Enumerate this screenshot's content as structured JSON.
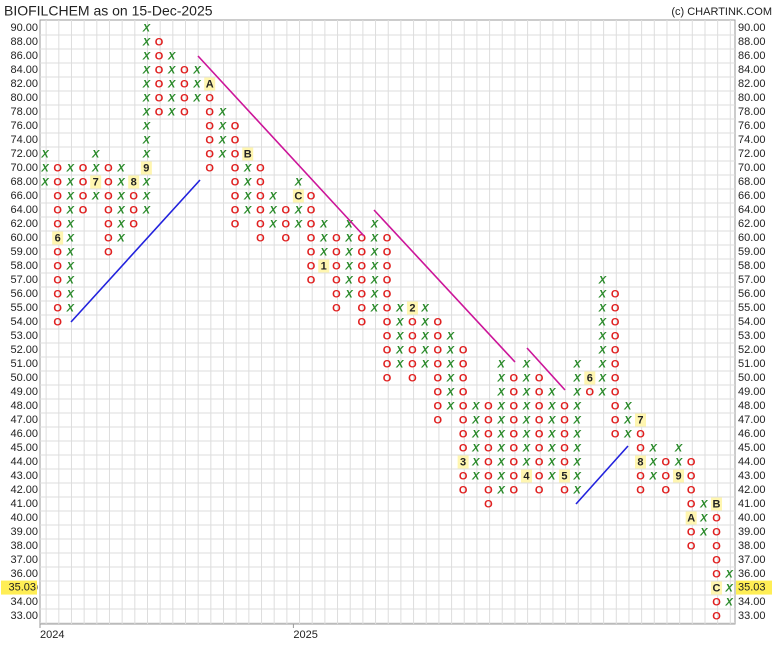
{
  "chart_data": {
    "type": "point-and-figure",
    "title": "BIOFILCHEM as on 15-Dec-2025",
    "credit": "(c) CHARTINK.COM",
    "x_color": "#2a8a2a",
    "o_color": "#e02020",
    "grid": true,
    "yticks": [
      {
        "value": 90,
        "label": "90.00"
      },
      {
        "value": 88,
        "label": "88.00"
      },
      {
        "value": 86,
        "label": "86.00"
      },
      {
        "value": 84,
        "label": "84.00"
      },
      {
        "value": 82,
        "label": "82.00"
      },
      {
        "value": 80,
        "label": "80.00"
      },
      {
        "value": 78,
        "label": "78.00"
      },
      {
        "value": 76,
        "label": "76.00"
      },
      {
        "value": 74,
        "label": "74.00"
      },
      {
        "value": 72,
        "label": "72.00"
      },
      {
        "value": 70,
        "label": "70.00"
      },
      {
        "value": 68,
        "label": "68.00"
      },
      {
        "value": 66,
        "label": "66.00"
      },
      {
        "value": 64,
        "label": "64.00"
      },
      {
        "value": 62,
        "label": "62.00"
      },
      {
        "value": 60,
        "label": "60.00"
      },
      {
        "value": 59,
        "label": "59.00"
      },
      {
        "value": 58,
        "label": "58.00"
      },
      {
        "value": 57,
        "label": "57.00"
      },
      {
        "value": 56,
        "label": "56.00"
      },
      {
        "value": 55,
        "label": "55.00"
      },
      {
        "value": 54,
        "label": "54.00"
      },
      {
        "value": 53,
        "label": "53.00"
      },
      {
        "value": 52,
        "label": "52.00"
      },
      {
        "value": 51,
        "label": "51.00"
      },
      {
        "value": 50,
        "label": "50.00"
      },
      {
        "value": 49,
        "label": "49.00"
      },
      {
        "value": 48,
        "label": "48.00"
      },
      {
        "value": 47,
        "label": "47.00"
      },
      {
        "value": 46,
        "label": "46.00"
      },
      {
        "value": 45,
        "label": "45.00"
      },
      {
        "value": 44,
        "label": "44.00"
      },
      {
        "value": 43,
        "label": "43.00"
      },
      {
        "value": 42,
        "label": "42.00"
      },
      {
        "value": 41,
        "label": "41.00"
      },
      {
        "value": 40,
        "label": "40.00"
      },
      {
        "value": 39,
        "label": "39.00"
      },
      {
        "value": 38,
        "label": "38.00"
      },
      {
        "value": 37,
        "label": "37.00"
      },
      {
        "value": 36,
        "label": "36.00"
      },
      {
        "value": 35,
        "label": "35.00"
      },
      {
        "value": 34,
        "label": "34.00"
      },
      {
        "value": 33,
        "label": "33.00"
      }
    ],
    "last_price": {
      "value": 35.03,
      "label": "35.03"
    },
    "categories": [
      "2024",
      null,
      null,
      null,
      null,
      null,
      null,
      null,
      null,
      null,
      null,
      null,
      null,
      null,
      null,
      null,
      null,
      null,
      null,
      null,
      "2025",
      null,
      null,
      null,
      null,
      null,
      null,
      null,
      null,
      null,
      null,
      null,
      null,
      null,
      null,
      null,
      null,
      null,
      null,
      null,
      null,
      null,
      null,
      null,
      null,
      null,
      null,
      null,
      null,
      null,
      null,
      null,
      null,
      null,
      null
    ],
    "columns": [
      {
        "box": "X",
        "low": 68,
        "high": 72
      },
      {
        "box": "O",
        "low": 54,
        "high": 70,
        "markers": [
          {
            "value": 60,
            "label": "6"
          }
        ]
      },
      {
        "box": "X",
        "low": 55,
        "high": 70
      },
      {
        "box": "O",
        "low": 64,
        "high": 70
      },
      {
        "box": "X",
        "low": 66,
        "high": 72,
        "markers": [
          {
            "value": 68,
            "label": "7"
          }
        ]
      },
      {
        "box": "O",
        "low": 59,
        "high": 70
      },
      {
        "box": "X",
        "low": 60,
        "high": 70
      },
      {
        "box": "O",
        "low": 62,
        "high": 68,
        "markers": [
          {
            "value": 68,
            "label": "8"
          }
        ]
      },
      {
        "box": "X",
        "low": 64,
        "high": 90,
        "markers": [
          {
            "value": 70,
            "label": "9"
          }
        ]
      },
      {
        "box": "O",
        "low": 78,
        "high": 88
      },
      {
        "box": "X",
        "low": 78,
        "high": 86
      },
      {
        "box": "O",
        "low": 78,
        "high": 84
      },
      {
        "box": "X",
        "low": 80,
        "high": 84
      },
      {
        "box": "O",
        "low": 70,
        "high": 82,
        "markers": [
          {
            "value": 82,
            "label": "A"
          }
        ]
      },
      {
        "box": "X",
        "low": 72,
        "high": 78
      },
      {
        "box": "O",
        "low": 62,
        "high": 76
      },
      {
        "box": "X",
        "low": 64,
        "high": 72,
        "markers": [
          {
            "value": 72,
            "label": "B"
          }
        ]
      },
      {
        "box": "O",
        "low": 60,
        "high": 70
      },
      {
        "box": "X",
        "low": 62,
        "high": 66
      },
      {
        "box": "O",
        "low": 60,
        "high": 64
      },
      {
        "box": "X",
        "low": 62,
        "high": 68,
        "markers": [
          {
            "value": 66,
            "label": "C"
          }
        ]
      },
      {
        "box": "O",
        "low": 57,
        "high": 66
      },
      {
        "box": "X",
        "low": 58,
        "high": 62,
        "markers": [
          {
            "value": 58,
            "label": "1"
          }
        ]
      },
      {
        "box": "O",
        "low": 55,
        "high": 60
      },
      {
        "box": "X",
        "low": 56,
        "high": 62
      },
      {
        "box": "O",
        "low": 54,
        "high": 60
      },
      {
        "box": "X",
        "low": 55,
        "high": 62
      },
      {
        "box": "O",
        "low": 50,
        "high": 60
      },
      {
        "box": "X",
        "low": 51,
        "high": 55
      },
      {
        "box": "O",
        "low": 50,
        "high": 55,
        "markers": [
          {
            "value": 55,
            "label": "2"
          }
        ]
      },
      {
        "box": "X",
        "low": 51,
        "high": 55
      },
      {
        "box": "O",
        "low": 47,
        "high": 54
      },
      {
        "box": "X",
        "low": 48,
        "high": 53
      },
      {
        "box": "O",
        "low": 42,
        "high": 52,
        "markers": [
          {
            "value": 44,
            "label": "3"
          }
        ]
      },
      {
        "box": "X",
        "low": 43,
        "high": 48
      },
      {
        "box": "O",
        "low": 41,
        "high": 48
      },
      {
        "box": "X",
        "low": 42,
        "high": 51
      },
      {
        "box": "O",
        "low": 42,
        "high": 50
      },
      {
        "box": "X",
        "low": 43,
        "high": 51,
        "markers": [
          {
            "value": 43,
            "label": "4"
          }
        ]
      },
      {
        "box": "O",
        "low": 42,
        "high": 50
      },
      {
        "box": "X",
        "low": 43,
        "high": 49
      },
      {
        "box": "O",
        "low": 42,
        "high": 48,
        "markers": [
          {
            "value": 43,
            "label": "5"
          }
        ]
      },
      {
        "box": "X",
        "low": 42,
        "high": 51
      },
      {
        "box": "O",
        "low": 49,
        "high": 50,
        "markers": [
          {
            "value": 50,
            "label": "6"
          }
        ]
      },
      {
        "box": "X",
        "low": 49,
        "high": 57
      },
      {
        "box": "O",
        "low": 46,
        "high": 56
      },
      {
        "box": "X",
        "low": 46,
        "high": 48
      },
      {
        "box": "O",
        "low": 42,
        "high": 47,
        "markers": [
          {
            "value": 47,
            "label": "7"
          },
          {
            "value": 44,
            "label": "8"
          }
        ]
      },
      {
        "box": "X",
        "low": 43,
        "high": 45
      },
      {
        "box": "O",
        "low": 42,
        "high": 44
      },
      {
        "box": "X",
        "low": 43,
        "high": 45,
        "markers": [
          {
            "value": 43,
            "label": "9"
          }
        ]
      },
      {
        "box": "O",
        "low": 38,
        "high": 44,
        "markers": [
          {
            "value": 40,
            "label": "A"
          }
        ]
      },
      {
        "box": "X",
        "low": 39,
        "high": 41
      },
      {
        "box": "O",
        "low": 33,
        "high": 41,
        "markers": [
          {
            "value": 41,
            "label": "B"
          },
          {
            "value": 35,
            "label": "C"
          }
        ]
      },
      {
        "box": "X",
        "low": 34,
        "high": 36
      }
    ]
  }
}
